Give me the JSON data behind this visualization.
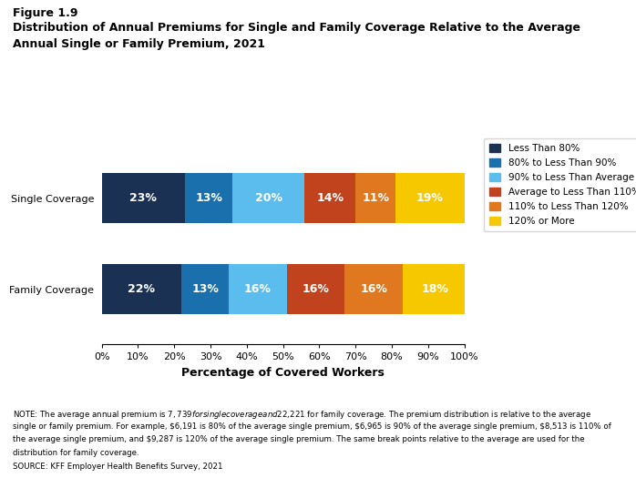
{
  "title_line1": "Figure 1.9",
  "title_line2": "Distribution of Annual Premiums for Single and Family Coverage Relative to the Average\nAnnual Single or Family Premium, 2021",
  "categories": [
    "Single Coverage",
    "Family Coverage"
  ],
  "segments": [
    {
      "label": "Less Than 80%",
      "color": "#1a3154",
      "values": [
        23,
        22
      ]
    },
    {
      "label": "80% to Less Than 90%",
      "color": "#1a6fad",
      "values": [
        13,
        13
      ]
    },
    {
      "label": "90% to Less Than Average",
      "color": "#5bbdee",
      "values": [
        20,
        16
      ]
    },
    {
      "label": "Average to Less Than 110%",
      "color": "#c0431e",
      "values": [
        14,
        16
      ]
    },
    {
      "label": "110% to Less Than 120%",
      "color": "#e07820",
      "values": [
        11,
        16
      ]
    },
    {
      "label": "120% or More",
      "color": "#f5c800",
      "values": [
        19,
        18
      ]
    }
  ],
  "xlabel": "Percentage of Covered Workers",
  "xlim": [
    0,
    100
  ],
  "xticks": [
    0,
    10,
    20,
    30,
    40,
    50,
    60,
    70,
    80,
    90,
    100
  ],
  "note_line1": "NOTE: The average annual premium is $7,739 for single coverage and $22,221 for family coverage. The premium distribution is relative to the average",
  "note_line2": "single or family premium. For example, $6,191 is 80% of the average single premium, $6,965 is 90% of the average single premium, $8,513 is 110% of",
  "note_line3": "the average single premium, and $9,287 is 120% of the average single premium. The same break points relative to the average are used for the",
  "note_line4": "distribution for family coverage.",
  "source": "SOURCE: KFF Employer Health Benefits Survey, 2021",
  "text_color": "#ffffff",
  "label_fontsize": 9,
  "bar_height": 0.55
}
